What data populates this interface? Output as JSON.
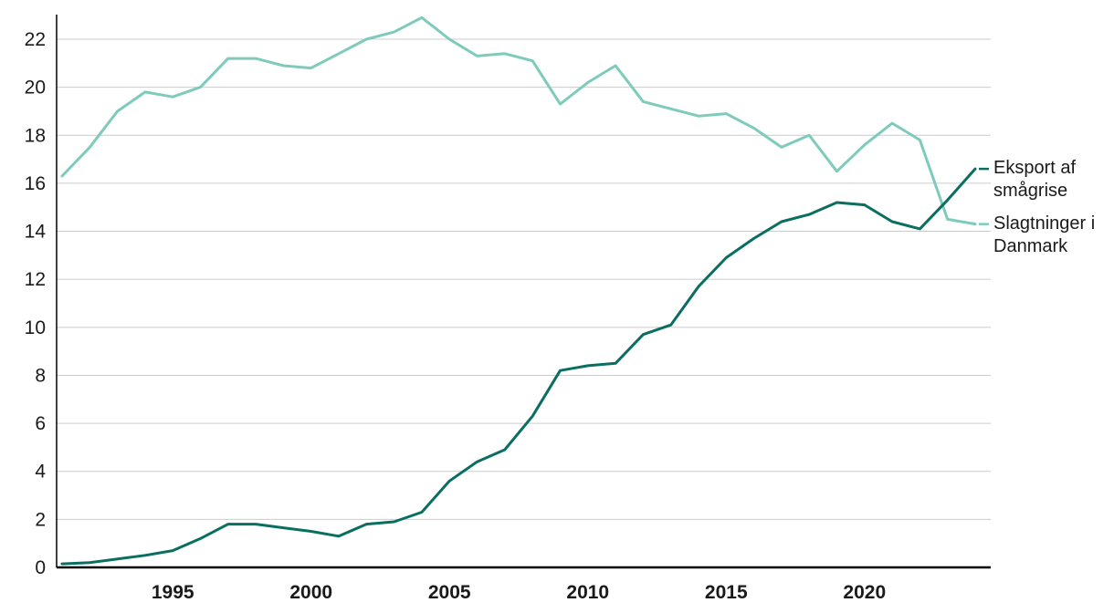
{
  "chart_data": {
    "type": "line",
    "title": "",
    "xlabel": "",
    "ylabel": "",
    "x_years": [
      1991,
      1992,
      1993,
      1994,
      1995,
      1996,
      1997,
      1998,
      1999,
      2000,
      2001,
      2002,
      2003,
      2004,
      2005,
      2006,
      2007,
      2008,
      2009,
      2010,
      2011,
      2012,
      2013,
      2014,
      2015,
      2016,
      2017,
      2018,
      2019,
      2020,
      2021,
      2022,
      2023,
      2024
    ],
    "series": [
      {
        "name": "Eksport af smågrise",
        "color": "#0a6e61",
        "values": [
          0.15,
          0.2,
          0.35,
          0.5,
          0.7,
          1.2,
          1.8,
          1.8,
          1.65,
          1.5,
          1.3,
          1.8,
          1.9,
          2.3,
          3.6,
          4.4,
          4.9,
          6.3,
          8.2,
          8.4,
          8.5,
          9.7,
          10.1,
          11.7,
          12.9,
          13.7,
          14.4,
          14.7,
          15.2,
          15.1,
          14.4,
          14.1,
          15.3,
          16.6
        ]
      },
      {
        "name": "Slagtninger i Danmark",
        "color": "#7ecbbb",
        "values": [
          16.3,
          17.5,
          19.0,
          19.8,
          19.6,
          20.0,
          21.2,
          21.2,
          20.9,
          20.8,
          21.4,
          22.0,
          22.3,
          22.9,
          22.0,
          21.3,
          21.4,
          21.1,
          19.3,
          20.2,
          20.9,
          19.4,
          19.1,
          18.8,
          18.9,
          18.3,
          17.5,
          18.0,
          16.5,
          17.6,
          18.5,
          17.8,
          14.5,
          14.3
        ]
      }
    ],
    "ylim": [
      0,
      23.2
    ],
    "yticks": [
      0,
      2,
      4,
      6,
      8,
      10,
      12,
      14,
      16,
      18,
      20,
      22
    ],
    "xticks": [
      1995,
      2000,
      2005,
      2010,
      2015,
      2020
    ],
    "grid": "horizontal",
    "legend_position": "right",
    "colors": {
      "grid": "#cccccc",
      "axis": "#000000",
      "text": "#1a1a1a"
    }
  }
}
